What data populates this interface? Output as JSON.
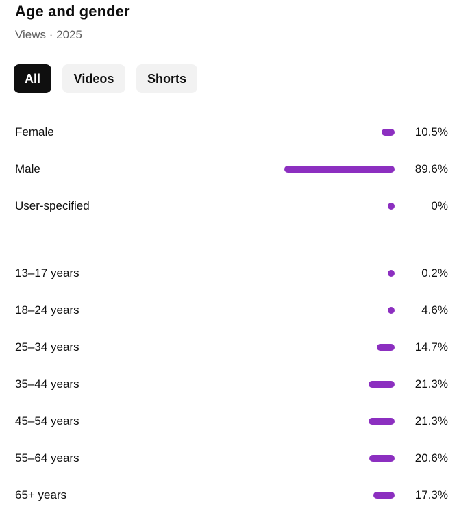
{
  "header": {
    "title": "Age and gender",
    "subtitle": "Views · 2025"
  },
  "filters": [
    {
      "label": "All",
      "active": true
    },
    {
      "label": "Videos",
      "active": false
    },
    {
      "label": "Shorts",
      "active": false
    }
  ],
  "gender": [
    {
      "label": "Female",
      "value": 10.5,
      "display": "10.5%"
    },
    {
      "label": "Male",
      "value": 89.6,
      "display": "89.6%"
    },
    {
      "label": "User-specified",
      "value": 0,
      "display": "0%"
    }
  ],
  "age": [
    {
      "label": "13–17 years",
      "value": 0.2,
      "display": "0.2%"
    },
    {
      "label": "18–24 years",
      "value": 4.6,
      "display": "4.6%"
    },
    {
      "label": "25–34 years",
      "value": 14.7,
      "display": "14.7%"
    },
    {
      "label": "35–44 years",
      "value": 21.3,
      "display": "21.3%"
    },
    {
      "label": "45–54 years",
      "value": 21.3,
      "display": "21.3%"
    },
    {
      "label": "55–64 years",
      "value": 20.6,
      "display": "20.6%"
    },
    {
      "label": "65+ years",
      "value": 17.3,
      "display": "17.3%"
    }
  ],
  "colors": {
    "bar": "#8c2fc0"
  }
}
